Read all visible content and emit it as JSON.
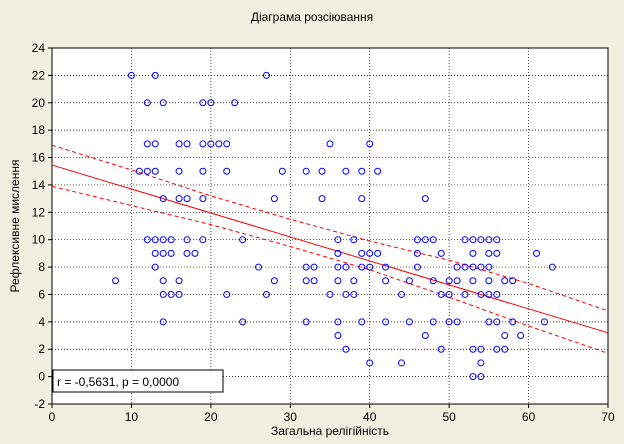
{
  "chart_data": {
    "type": "scatter",
    "title": "Діаграма розсіювання",
    "xlabel": "Загальна релігійність",
    "ylabel": "Рефлексивне мислення",
    "xlim": [
      0,
      70
    ],
    "ylim": [
      -2,
      24
    ],
    "xticks": [
      0,
      10,
      20,
      30,
      40,
      50,
      60,
      70
    ],
    "yticks": [
      -2,
      0,
      2,
      4,
      6,
      8,
      10,
      12,
      14,
      16,
      18,
      20,
      22,
      24
    ],
    "grid": true,
    "annotation": "r = -0,5631, p = 0,0000",
    "marker_color": "#0000ff",
    "line_color": "#ff0000",
    "regression": {
      "intercept": 15.45,
      "slope": -0.175
    },
    "confidence_band": {
      "x": [
        0,
        10,
        20,
        30,
        40,
        50,
        60,
        70
      ],
      "upper": [
        16.9,
        15.1,
        13.2,
        11.5,
        9.9,
        8.5,
        6.8,
        4.8
      ],
      "lower": [
        13.9,
        12.5,
        11.1,
        9.5,
        7.8,
        5.8,
        3.7,
        1.7
      ]
    },
    "points": [
      {
        "x": 8,
        "y": 7
      },
      {
        "x": 10,
        "y": 22
      },
      {
        "x": 11,
        "y": 15
      },
      {
        "x": 12,
        "y": 10
      },
      {
        "x": 12,
        "y": 15
      },
      {
        "x": 12,
        "y": 17
      },
      {
        "x": 12,
        "y": 20
      },
      {
        "x": 13,
        "y": 15
      },
      {
        "x": 13,
        "y": 17
      },
      {
        "x": 13,
        "y": 22
      },
      {
        "x": 13,
        "y": 10
      },
      {
        "x": 13,
        "y": 9
      },
      {
        "x": 13,
        "y": 8
      },
      {
        "x": 14,
        "y": 10
      },
      {
        "x": 14,
        "y": 9
      },
      {
        "x": 14,
        "y": 7
      },
      {
        "x": 14,
        "y": 6
      },
      {
        "x": 14,
        "y": 4
      },
      {
        "x": 14,
        "y": 13
      },
      {
        "x": 14,
        "y": 20
      },
      {
        "x": 15,
        "y": 10
      },
      {
        "x": 15,
        "y": 9
      },
      {
        "x": 15,
        "y": 6
      },
      {
        "x": 16,
        "y": 17
      },
      {
        "x": 16,
        "y": 15
      },
      {
        "x": 16,
        "y": 13
      },
      {
        "x": 16,
        "y": 7
      },
      {
        "x": 16,
        "y": 6
      },
      {
        "x": 17,
        "y": 17
      },
      {
        "x": 17,
        "y": 13
      },
      {
        "x": 17,
        "y": 10
      },
      {
        "x": 17,
        "y": 9
      },
      {
        "x": 18,
        "y": 9
      },
      {
        "x": 19,
        "y": 20
      },
      {
        "x": 19,
        "y": 17
      },
      {
        "x": 19,
        "y": 15
      },
      {
        "x": 19,
        "y": 13
      },
      {
        "x": 19,
        "y": 10
      },
      {
        "x": 20,
        "y": 20
      },
      {
        "x": 20,
        "y": 17
      },
      {
        "x": 21,
        "y": 17
      },
      {
        "x": 22,
        "y": 17
      },
      {
        "x": 22,
        "y": 15
      },
      {
        "x": 22,
        "y": 6
      },
      {
        "x": 23,
        "y": 20
      },
      {
        "x": 24,
        "y": 10
      },
      {
        "x": 24,
        "y": 4
      },
      {
        "x": 26,
        "y": 8
      },
      {
        "x": 27,
        "y": 22
      },
      {
        "x": 27,
        "y": 6
      },
      {
        "x": 28,
        "y": 13
      },
      {
        "x": 28,
        "y": 7
      },
      {
        "x": 29,
        "y": 15
      },
      {
        "x": 32,
        "y": 15
      },
      {
        "x": 32,
        "y": 8
      },
      {
        "x": 32,
        "y": 7
      },
      {
        "x": 32,
        "y": 4
      },
      {
        "x": 33,
        "y": 8
      },
      {
        "x": 33,
        "y": 7
      },
      {
        "x": 34,
        "y": 15
      },
      {
        "x": 34,
        "y": 13
      },
      {
        "x": 35,
        "y": 17
      },
      {
        "x": 35,
        "y": 6
      },
      {
        "x": 36,
        "y": 10
      },
      {
        "x": 36,
        "y": 9
      },
      {
        "x": 36,
        "y": 8
      },
      {
        "x": 36,
        "y": 7
      },
      {
        "x": 36,
        "y": 4
      },
      {
        "x": 36,
        "y": 3
      },
      {
        "x": 37,
        "y": 15
      },
      {
        "x": 37,
        "y": 8
      },
      {
        "x": 37,
        "y": 6
      },
      {
        "x": 37,
        "y": 2
      },
      {
        "x": 38,
        "y": 10
      },
      {
        "x": 38,
        "y": 7
      },
      {
        "x": 38,
        "y": 6
      },
      {
        "x": 39,
        "y": 15
      },
      {
        "x": 39,
        "y": 13
      },
      {
        "x": 39,
        "y": 9
      },
      {
        "x": 39,
        "y": 8
      },
      {
        "x": 39,
        "y": 4
      },
      {
        "x": 40,
        "y": 17
      },
      {
        "x": 40,
        "y": 9
      },
      {
        "x": 40,
        "y": 8
      },
      {
        "x": 40,
        "y": 1
      },
      {
        "x": 41,
        "y": 15
      },
      {
        "x": 41,
        "y": 9
      },
      {
        "x": 42,
        "y": 8
      },
      {
        "x": 42,
        "y": 7
      },
      {
        "x": 42,
        "y": 4
      },
      {
        "x": 44,
        "y": 6
      },
      {
        "x": 44,
        "y": 1
      },
      {
        "x": 45,
        "y": 7
      },
      {
        "x": 45,
        "y": 4
      },
      {
        "x": 46,
        "y": 10
      },
      {
        "x": 46,
        "y": 9
      },
      {
        "x": 46,
        "y": 8
      },
      {
        "x": 47,
        "y": 13
      },
      {
        "x": 47,
        "y": 10
      },
      {
        "x": 47,
        "y": 3
      },
      {
        "x": 48,
        "y": 10
      },
      {
        "x": 48,
        "y": 7
      },
      {
        "x": 48,
        "y": 4
      },
      {
        "x": 49,
        "y": 9
      },
      {
        "x": 49,
        "y": 6
      },
      {
        "x": 49,
        "y": 2
      },
      {
        "x": 50,
        "y": 7
      },
      {
        "x": 50,
        "y": 6
      },
      {
        "x": 50,
        "y": 4
      },
      {
        "x": 51,
        "y": 8
      },
      {
        "x": 51,
        "y": 7
      },
      {
        "x": 51,
        "y": 4
      },
      {
        "x": 52,
        "y": 10
      },
      {
        "x": 52,
        "y": 8
      },
      {
        "x": 52,
        "y": 6
      },
      {
        "x": 53,
        "y": 10
      },
      {
        "x": 53,
        "y": 9
      },
      {
        "x": 53,
        "y": 8
      },
      {
        "x": 53,
        "y": 7
      },
      {
        "x": 53,
        "y": 2
      },
      {
        "x": 53,
        "y": 0
      },
      {
        "x": 54,
        "y": 10
      },
      {
        "x": 54,
        "y": 8
      },
      {
        "x": 54,
        "y": 6
      },
      {
        "x": 54,
        "y": 2
      },
      {
        "x": 54,
        "y": 1
      },
      {
        "x": 54,
        "y": 0
      },
      {
        "x": 55,
        "y": 10
      },
      {
        "x": 55,
        "y": 9
      },
      {
        "x": 55,
        "y": 8
      },
      {
        "x": 55,
        "y": 7
      },
      {
        "x": 55,
        "y": 6
      },
      {
        "x": 55,
        "y": 4
      },
      {
        "x": 56,
        "y": 10
      },
      {
        "x": 56,
        "y": 9
      },
      {
        "x": 56,
        "y": 6
      },
      {
        "x": 56,
        "y": 4
      },
      {
        "x": 56,
        "y": 2
      },
      {
        "x": 57,
        "y": 7
      },
      {
        "x": 57,
        "y": 3
      },
      {
        "x": 57,
        "y": 2
      },
      {
        "x": 58,
        "y": 7
      },
      {
        "x": 58,
        "y": 4
      },
      {
        "x": 59,
        "y": 3
      },
      {
        "x": 61,
        "y": 9
      },
      {
        "x": 62,
        "y": 4
      },
      {
        "x": 63,
        "y": 8
      }
    ]
  }
}
